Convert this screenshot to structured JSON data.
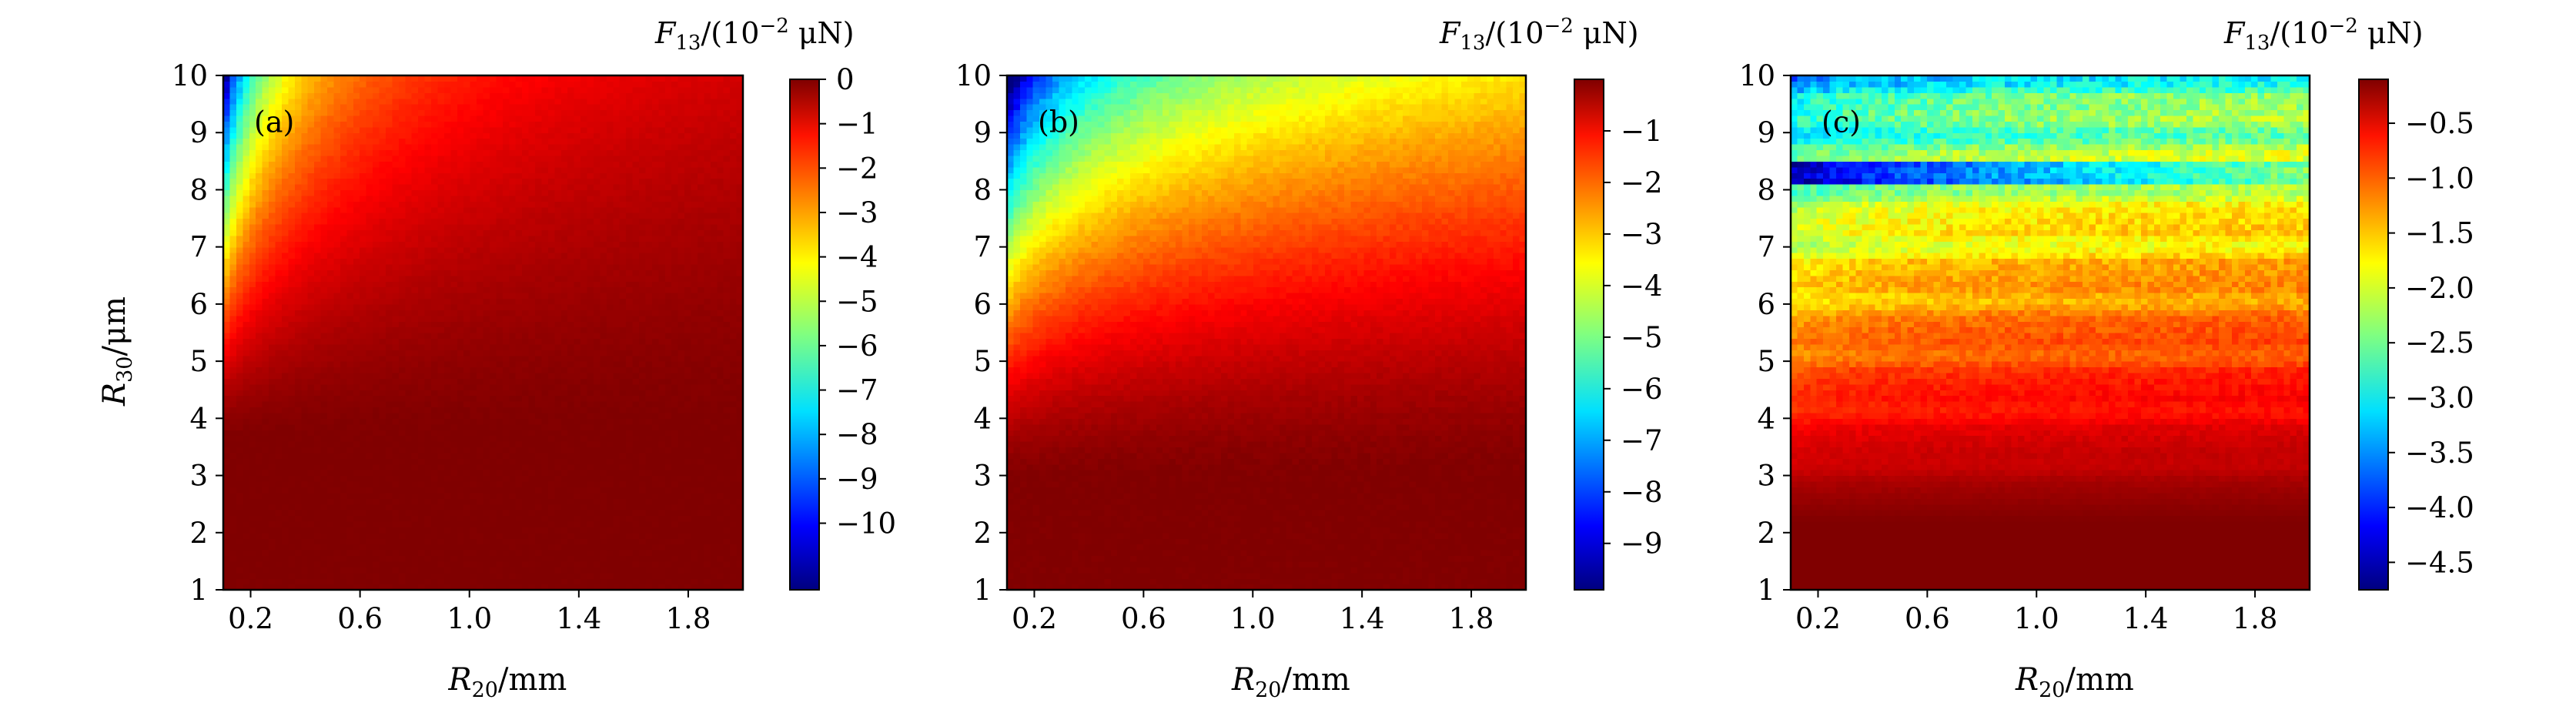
{
  "figure": {
    "y_label": "R",
    "y_label_sub": "30",
    "y_label_unit": "/μm",
    "x_label": "R",
    "x_label_sub": "20",
    "x_label_unit": "/mm",
    "cbar_title": "F",
    "cbar_title_sub": "13",
    "cbar_title_open": "/(10",
    "cbar_title_exp": "−2",
    "cbar_title_close": " μN)"
  },
  "chart_data": [
    {
      "type": "heatmap",
      "panel_label": "(a)",
      "x_range": [
        0.1,
        2.0
      ],
      "y_range": [
        1,
        10
      ],
      "x_ticks": [
        "0.2",
        "0.6",
        "1.0",
        "1.4",
        "1.8"
      ],
      "x_tick_values": [
        0.2,
        0.6,
        1.0,
        1.4,
        1.8
      ],
      "y_ticks": [
        "1",
        "2",
        "3",
        "4",
        "5",
        "6",
        "7",
        "8",
        "9",
        "10"
      ],
      "y_tick_values": [
        1,
        2,
        3,
        4,
        5,
        6,
        7,
        8,
        9,
        10
      ],
      "colorbar_range": [
        -11.5,
        0
      ],
      "colorbar_ticks": [
        "0",
        "−1",
        "−2",
        "−3",
        "−4",
        "−5",
        "−6",
        "−7",
        "−8",
        "−9",
        "−10"
      ],
      "colorbar_tick_values": [
        0,
        -1,
        -2,
        -3,
        -4,
        -5,
        -6,
        -7,
        -8,
        -9,
        -10
      ],
      "colormap": "jet",
      "grid": false
    },
    {
      "type": "heatmap",
      "panel_label": "(b)",
      "x_range": [
        0.1,
        2.0
      ],
      "y_range": [
        1,
        10
      ],
      "x_ticks": [
        "0.2",
        "0.6",
        "1.0",
        "1.4",
        "1.8"
      ],
      "x_tick_values": [
        0.2,
        0.6,
        1.0,
        1.4,
        1.8
      ],
      "y_ticks": [
        "1",
        "2",
        "3",
        "4",
        "5",
        "6",
        "7",
        "8",
        "9",
        "10"
      ],
      "y_tick_values": [
        1,
        2,
        3,
        4,
        5,
        6,
        7,
        8,
        9,
        10
      ],
      "colorbar_range": [
        -9.9,
        0
      ],
      "colorbar_ticks": [
        "−1",
        "−2",
        "−3",
        "−4",
        "−5",
        "−6",
        "−7",
        "−8",
        "−9"
      ],
      "colorbar_tick_values": [
        -1,
        -2,
        -3,
        -4,
        -5,
        -6,
        -7,
        -8,
        -9
      ],
      "colormap": "jet",
      "grid": false
    },
    {
      "type": "heatmap",
      "panel_label": "(c)",
      "x_range": [
        0.1,
        2.0
      ],
      "y_range": [
        1,
        10
      ],
      "x_ticks": [
        "0.2",
        "0.6",
        "1.0",
        "1.4",
        "1.8"
      ],
      "x_tick_values": [
        0.2,
        0.6,
        1.0,
        1.4,
        1.8
      ],
      "y_ticks": [
        "1",
        "2",
        "3",
        "4",
        "5",
        "6",
        "7",
        "8",
        "9",
        "10"
      ],
      "y_tick_values": [
        1,
        2,
        3,
        4,
        5,
        6,
        7,
        8,
        9,
        10
      ],
      "colorbar_range": [
        -4.75,
        -0.1
      ],
      "colorbar_ticks": [
        "−0.5",
        "−1.0",
        "−1.5",
        "−2.0",
        "−2.5",
        "−3.0",
        "−3.5",
        "−4.0",
        "−4.5"
      ],
      "colorbar_tick_values": [
        -0.5,
        -1.0,
        -1.5,
        -2.0,
        -2.5,
        -3.0,
        -3.5,
        -4.0,
        -4.5
      ],
      "colormap": "jet",
      "grid": false
    }
  ]
}
